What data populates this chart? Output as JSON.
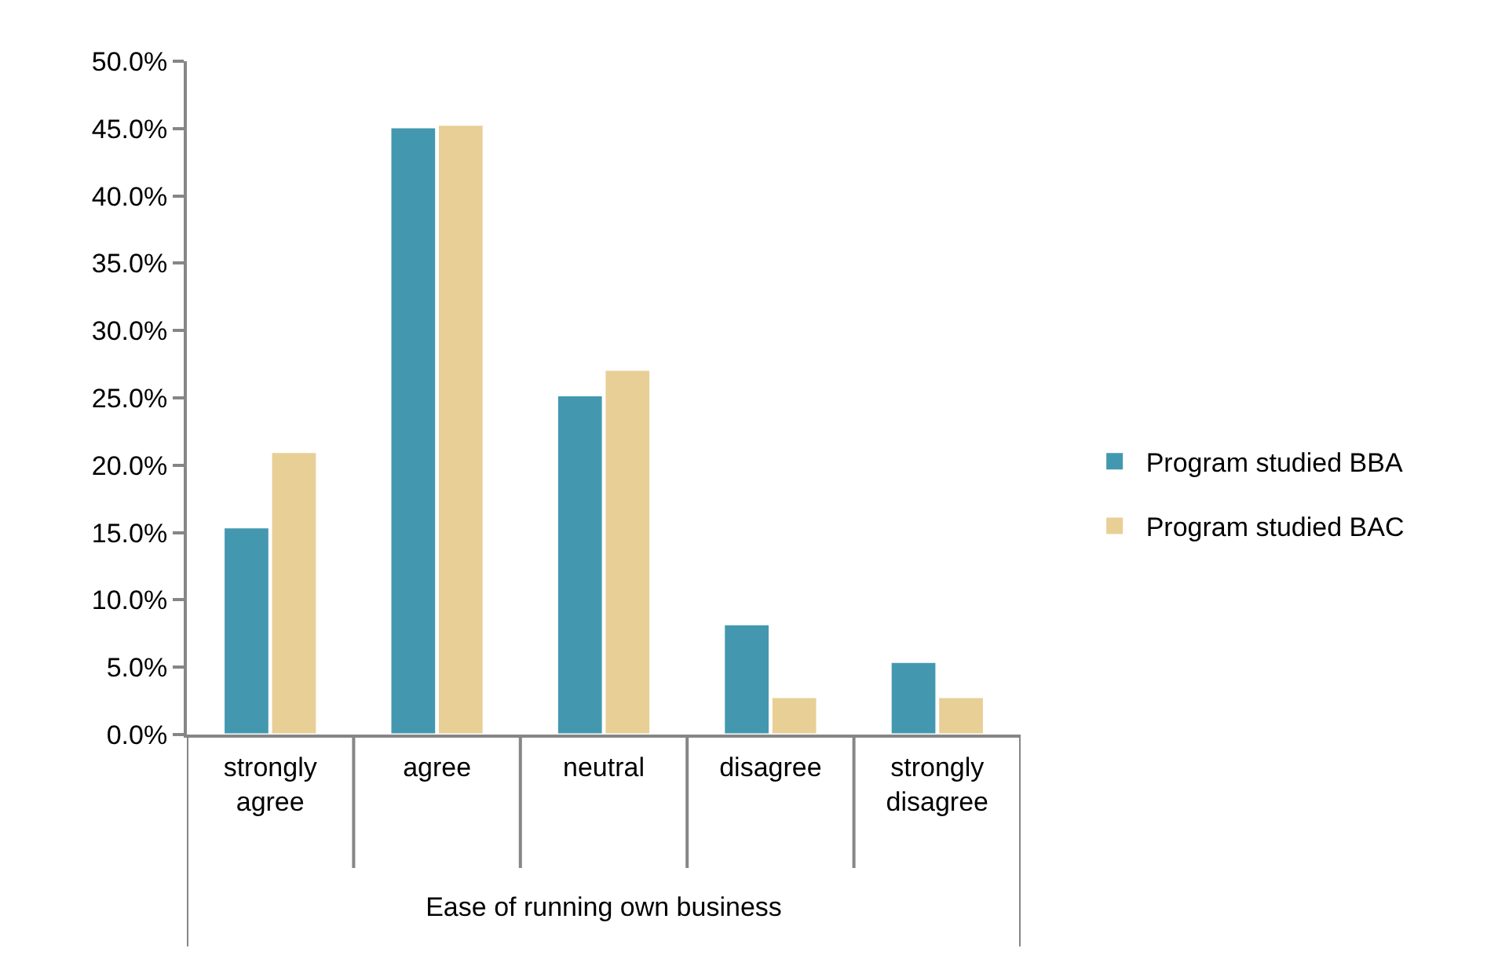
{
  "chart_data": {
    "type": "bar",
    "xlabel": "Ease of running own business",
    "categories": [
      "strongly agree",
      "agree",
      "neutral",
      "disagree",
      "strongly disagree"
    ],
    "series": [
      {
        "name": "Program studied BBA",
        "color": "#4398b0",
        "values": [
          15.4,
          45.1,
          25.2,
          8.2,
          5.4
        ]
      },
      {
        "name": "Program studied BAC",
        "color": "#e8cf96",
        "values": [
          21.0,
          45.3,
          27.1,
          2.8,
          2.8
        ]
      }
    ],
    "ylim": [
      0,
      50
    ],
    "yticks": [
      {
        "value": 0,
        "label": "0.0%"
      },
      {
        "value": 5,
        "label": "5.0%"
      },
      {
        "value": 10,
        "label": "10.0%"
      },
      {
        "value": 15,
        "label": "15.0%"
      },
      {
        "value": 20,
        "label": "20.0%"
      },
      {
        "value": 25,
        "label": "25.0%"
      },
      {
        "value": 30,
        "label": "30.0%"
      },
      {
        "value": 35,
        "label": "35.0%"
      },
      {
        "value": 40,
        "label": "40.0%"
      },
      {
        "value": 45,
        "label": "45.0%"
      },
      {
        "value": 50,
        "label": "50.0%"
      }
    ],
    "legend": "right"
  }
}
